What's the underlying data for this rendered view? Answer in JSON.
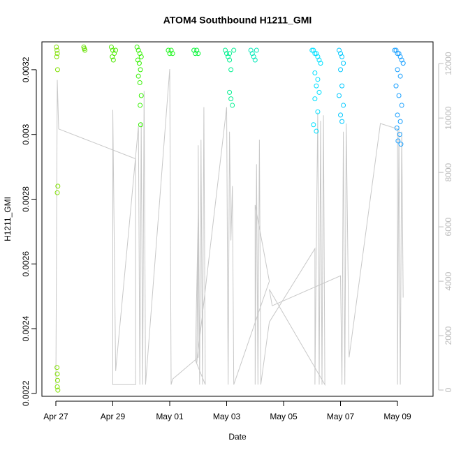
{
  "chart_data": {
    "type": "scatter",
    "title": "ATOM4 Southbound H1211_GMI",
    "xlabel": "Date",
    "ylabel": "H1211_GMI",
    "xlim": [
      -0.49,
      13.25
    ],
    "xticks": [
      {
        "value": 0,
        "label": "Apr 27"
      },
      {
        "value": 2,
        "label": "Apr 29"
      },
      {
        "value": 4,
        "label": "May 01"
      },
      {
        "value": 6,
        "label": "May 03"
      },
      {
        "value": 8,
        "label": "May 05"
      },
      {
        "value": 10,
        "label": "May 07"
      },
      {
        "value": 12,
        "label": "May 09"
      }
    ],
    "ylim": [
      0.002191,
      0.003286
    ],
    "yticks": [
      0.0022,
      0.0024,
      0.0026,
      0.0028,
      0.003,
      0.0032
    ],
    "y2lim": [
      -230,
      12800
    ],
    "y2ticks": [
      0,
      2000,
      4000,
      6000,
      8000,
      10000,
      12000
    ],
    "y2color": "#bbbbbb",
    "series": [
      {
        "type": "line",
        "axis": "y2",
        "color": "#c8c8c8",
        "x": [
          0.0,
          0.05,
          0.1,
          2.8,
          2.8,
          2.0,
          2.0,
          2.1,
          2.9,
          2.95,
          3.0,
          3.05,
          3.1,
          3.15,
          4.0,
          4.05,
          4.1,
          5.0,
          5.0,
          5.05,
          5.1,
          5.15,
          5.2,
          5.25,
          4.9,
          5.0,
          4.95,
          6.0,
          6.05,
          6.1,
          6.15,
          6.2,
          6.25,
          7.5,
          7.0,
          7.0,
          7.05,
          7.1,
          7.15,
          7.2,
          7.5,
          9.1,
          9.1,
          9.2,
          9.25,
          9.3,
          9.35,
          9.4,
          9.45,
          7.5,
          7.6,
          10.0,
          10.05,
          10.1,
          10.15,
          10.2,
          10.3,
          11.4,
          12.0,
          12.0,
          12.05,
          12.1,
          12.15,
          12.2
        ],
        "values": [
          200,
          11400,
          9600,
          8500,
          200,
          200,
          10300,
          700,
          9700,
          200,
          9800,
          200,
          11000,
          200,
          11800,
          200,
          400,
          1200,
          9000,
          200,
          9200,
          200,
          10400,
          200,
          1100,
          6500,
          1000,
          10400,
          200,
          9500,
          5500,
          7500,
          200,
          4000,
          6800,
          200,
          8300,
          200,
          9200,
          200,
          2500,
          5200,
          200,
          10200,
          200,
          9900,
          200,
          10100,
          200,
          3700,
          3100,
          4200,
          200,
          9500,
          200,
          9800,
          1200,
          9800,
          9600,
          200,
          9700,
          200,
          9500,
          3400
        ]
      },
      {
        "color": "#80e000",
        "x": [
          0.02,
          0.04,
          0.05,
          0.03,
          0.06,
          0.07,
          0.05,
          0.04,
          0.05,
          0.06,
          0.05,
          0.07
        ],
        "values": [
          0.00327,
          0.00326,
          0.00325,
          0.00324,
          0.0032,
          0.00284,
          0.00282,
          0.00228,
          0.00226,
          0.00224,
          0.00222,
          0.00221
        ]
      },
      {
        "color": "#66e000",
        "x": [
          0.98,
          1.02,
          1.0
        ],
        "values": [
          0.00327,
          0.00326,
          0.003265
        ]
      },
      {
        "color": "#4cea00",
        "x": [
          1.95,
          2.0,
          2.05,
          1.98,
          2.02,
          2.1
        ],
        "values": [
          0.00327,
          0.00326,
          0.00325,
          0.00324,
          0.00323,
          0.00326
        ]
      },
      {
        "color": "#33f000",
        "x": [
          2.85,
          2.9,
          2.95,
          3.0,
          2.88,
          2.93,
          2.97,
          2.9,
          2.95,
          3.0,
          2.96,
          2.98
        ],
        "values": [
          0.00327,
          0.00326,
          0.00325,
          0.00324,
          0.00323,
          0.00322,
          0.0032,
          0.00318,
          0.00316,
          0.00312,
          0.00309,
          0.00303
        ]
      },
      {
        "color": "#19f519",
        "x": [
          3.95,
          4.0,
          4.05,
          4.1
        ],
        "values": [
          0.00326,
          0.00325,
          0.00326,
          0.00325
        ]
      },
      {
        "color": "#00f533",
        "x": [
          4.85,
          4.9,
          4.95,
          5.0
        ],
        "values": [
          0.00326,
          0.00325,
          0.00326,
          0.00325
        ]
      },
      {
        "color": "#00f090",
        "x": [
          5.95,
          6.0,
          6.05,
          6.1,
          6.15,
          6.1,
          6.15,
          6.2,
          6.1,
          6.25
        ],
        "values": [
          0.00326,
          0.00325,
          0.00324,
          0.00323,
          0.0032,
          0.00313,
          0.00311,
          0.00309,
          0.00325,
          0.00326
        ]
      },
      {
        "color": "#00e8b8",
        "x": [
          6.85,
          6.9,
          6.95,
          7.0,
          7.05
        ],
        "values": [
          0.00326,
          0.00325,
          0.00324,
          0.00323,
          0.00326
        ]
      },
      {
        "color": "#00e0ff",
        "x": [
          9.0,
          9.05,
          9.1,
          9.15,
          9.2,
          9.25,
          9.3,
          9.1,
          9.2,
          9.15,
          9.25,
          9.1,
          9.2,
          9.05,
          9.15
        ],
        "values": [
          0.00326,
          0.00326,
          0.00325,
          0.00325,
          0.00324,
          0.00323,
          0.00322,
          0.00319,
          0.00317,
          0.00315,
          0.00313,
          0.00311,
          0.00307,
          0.00303,
          0.00301
        ]
      },
      {
        "color": "#00c8ff",
        "x": [
          9.95,
          10.0,
          10.05,
          10.1,
          10.0,
          10.05,
          9.95,
          10.1,
          10.0,
          10.05
        ],
        "values": [
          0.00326,
          0.00325,
          0.00324,
          0.00322,
          0.0032,
          0.00315,
          0.00312,
          0.00309,
          0.00306,
          0.00304
        ]
      },
      {
        "color": "#1aa0ff",
        "x": [
          11.9,
          11.95,
          12.0,
          12.05,
          12.1,
          12.15,
          12.2,
          12.0,
          12.1,
          11.95,
          12.05,
          12.15,
          12.0,
          12.1,
          11.98,
          12.08,
          12.02,
          12.12
        ],
        "values": [
          0.00326,
          0.00326,
          0.00325,
          0.00325,
          0.00324,
          0.00323,
          0.00322,
          0.0032,
          0.00318,
          0.00315,
          0.00312,
          0.00309,
          0.00306,
          0.00304,
          0.00302,
          0.003,
          0.00298,
          0.00297
        ]
      }
    ]
  }
}
